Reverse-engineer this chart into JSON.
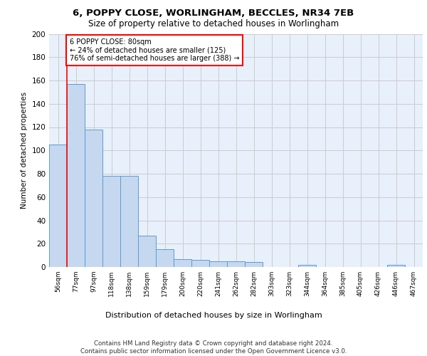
{
  "title1": "6, POPPY CLOSE, WORLINGHAM, BECCLES, NR34 7EB",
  "title2": "Size of property relative to detached houses in Worlingham",
  "xlabel": "Distribution of detached houses by size in Worlingham",
  "ylabel": "Number of detached properties",
  "categories": [
    "56sqm",
    "77sqm",
    "97sqm",
    "118sqm",
    "138sqm",
    "159sqm",
    "179sqm",
    "200sqm",
    "220sqm",
    "241sqm",
    "262sqm",
    "282sqm",
    "303sqm",
    "323sqm",
    "344sqm",
    "364sqm",
    "385sqm",
    "405sqm",
    "426sqm",
    "446sqm",
    "467sqm"
  ],
  "values": [
    105,
    157,
    118,
    78,
    78,
    27,
    15,
    7,
    6,
    5,
    5,
    4,
    0,
    0,
    2,
    0,
    0,
    0,
    0,
    2,
    0
  ],
  "bar_color": "#c5d8f0",
  "bar_edge_color": "#5b9bd5",
  "redline_index": 1,
  "annotation_text": "6 POPPY CLOSE: 80sqm\n← 24% of detached houses are smaller (125)\n76% of semi-detached houses are larger (388) →",
  "annotation_box_color": "white",
  "annotation_box_edge_color": "red",
  "redline_color": "red",
  "grid_color": "#cccccc",
  "background_color": "#e8f0fb",
  "footer": "Contains HM Land Registry data © Crown copyright and database right 2024.\nContains public sector information licensed under the Open Government Licence v3.0.",
  "ylim": [
    0,
    200
  ],
  "yticks": [
    0,
    20,
    40,
    60,
    80,
    100,
    120,
    140,
    160,
    180,
    200
  ]
}
